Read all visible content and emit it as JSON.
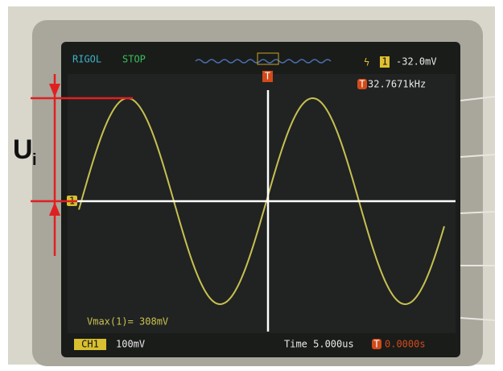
{
  "status": {
    "brand": "RIGOL",
    "state": "STOP"
  },
  "trigger": {
    "channel": "1",
    "level": "-32.0mV",
    "marker": "T",
    "frequency": "32.7671kHz"
  },
  "measurement": "Vmax(1)= 308mV",
  "channel_marker": "1",
  "footer": {
    "channel": "CH1",
    "scale": "100mV",
    "time": "Time 5.000us",
    "offset": "0.0000s"
  },
  "annotation": {
    "symbol": "U",
    "subscript": "i"
  }
}
